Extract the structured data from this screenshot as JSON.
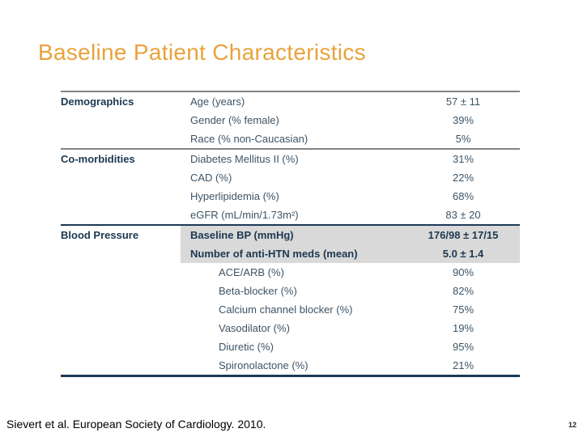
{
  "slide": {
    "title": "Baseline Patient Characteristics",
    "footer": "Sievert et al. European Society of Cardiology.  2010.",
    "page_number": "12"
  },
  "colors": {
    "title_orange": "#E8A23C",
    "category_navy": "#1C3850",
    "row_text": "#3D5466",
    "highlight_bg": "#D9D9D9",
    "border_gray": "#848484",
    "border_navy": "#1B3A55"
  },
  "table": {
    "sections": [
      {
        "category": "Demographics",
        "rows": [
          {
            "label": "Age (years)",
            "value": "57 ± 11"
          },
          {
            "label": "Gender (% female)",
            "value": "39%"
          },
          {
            "label": "Race (% non-Caucasian)",
            "value": "5%"
          }
        ]
      },
      {
        "category": "Co-morbidities",
        "rows": [
          {
            "label": "Diabetes Mellitus II (%)",
            "value": "31%"
          },
          {
            "label": "CAD (%)",
            "value": "22%"
          },
          {
            "label": "Hyperlipidemia (%)",
            "value": "68%"
          },
          {
            "label": "eGFR (mL/min/1.73m²)",
            "value": "83 ± 20"
          }
        ]
      },
      {
        "category": "Blood Pressure",
        "rows": [
          {
            "label": "Baseline BP (mmHg)",
            "value": "176/98 ± 17/15",
            "highlight": true
          },
          {
            "label": "Number of anti-HTN meds (mean)",
            "value": "5.0 ± 1.4",
            "highlight": true
          },
          {
            "label": "ACE/ARB (%)",
            "value": "90%",
            "indent": true
          },
          {
            "label": "Beta-blocker (%)",
            "value": "82%",
            "indent": true
          },
          {
            "label": "Calcium channel blocker (%)",
            "value": "75%",
            "indent": true
          },
          {
            "label": "Vasodilator (%)",
            "value": "19%",
            "indent": true
          },
          {
            "label": "Diuretic (%)",
            "value": "95%",
            "indent": true
          },
          {
            "label": "Spironolactone (%)",
            "value": "21%",
            "indent": true
          }
        ]
      }
    ]
  }
}
